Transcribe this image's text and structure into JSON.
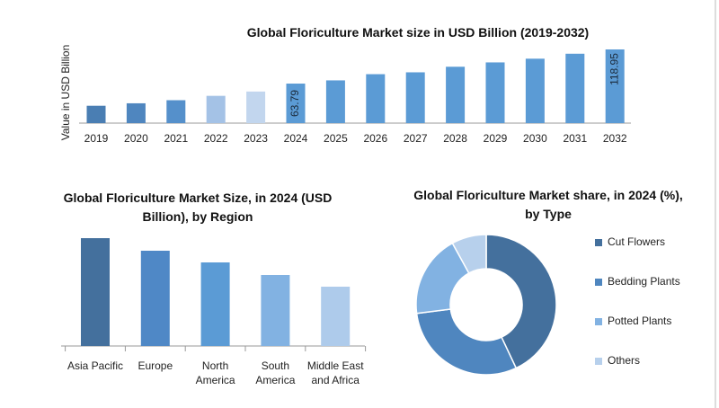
{
  "chart_data": [
    {
      "type": "bar",
      "title": "Global Floriculture Market size in USD Billion (2019-2032)",
      "y_label": "Value in USD Billion",
      "categories": [
        "2019",
        "2020",
        "2021",
        "2022",
        "2023",
        "2024",
        "2025",
        "2026",
        "2027",
        "2028",
        "2029",
        "2030",
        "2031",
        "2032"
      ],
      "values": [
        28,
        32,
        37,
        44,
        51,
        63.79,
        69,
        79,
        82,
        91,
        98,
        104,
        112,
        118.95
      ],
      "value_labels": [
        null,
        null,
        null,
        null,
        null,
        "63.79",
        null,
        null,
        null,
        null,
        null,
        null,
        null,
        "118.95"
      ],
      "colors": [
        "#4a7eb3",
        "#4f86bf",
        "#5590cb",
        "#a4c2e6",
        "#c2d6ee",
        "#5b9bd5",
        "#5b9bd5",
        "#5b9bd5",
        "#5b9bd5",
        "#5b9bd5",
        "#5b9bd5",
        "#5b9bd5",
        "#5b9bd5",
        "#5b9bd5"
      ]
    },
    {
      "type": "bar",
      "title": "Global Floriculture Market Size, in 2024 (USD Billion), by Region",
      "categories": [
        "Asia Pacific",
        "Europe",
        "North America",
        "South America",
        "Middle East and Africa"
      ],
      "values": [
        120,
        106,
        93,
        79,
        66
      ],
      "colors": [
        "#44709d",
        "#4f88c6",
        "#5b9bd5",
        "#82b2e2",
        "#aecbeb"
      ]
    },
    {
      "type": "pie",
      "donut": true,
      "title": "Global Floriculture Market share, in 2024 (%), by Type",
      "categories": [
        "Cut Flowers",
        "Bedding Plants",
        "Potted Plants",
        "Others"
      ],
      "values": [
        43,
        30,
        19,
        8
      ],
      "colors": [
        "#44709d",
        "#4f86bf",
        "#82b2e2",
        "#b7d0ec"
      ],
      "legend": "right"
    }
  ]
}
